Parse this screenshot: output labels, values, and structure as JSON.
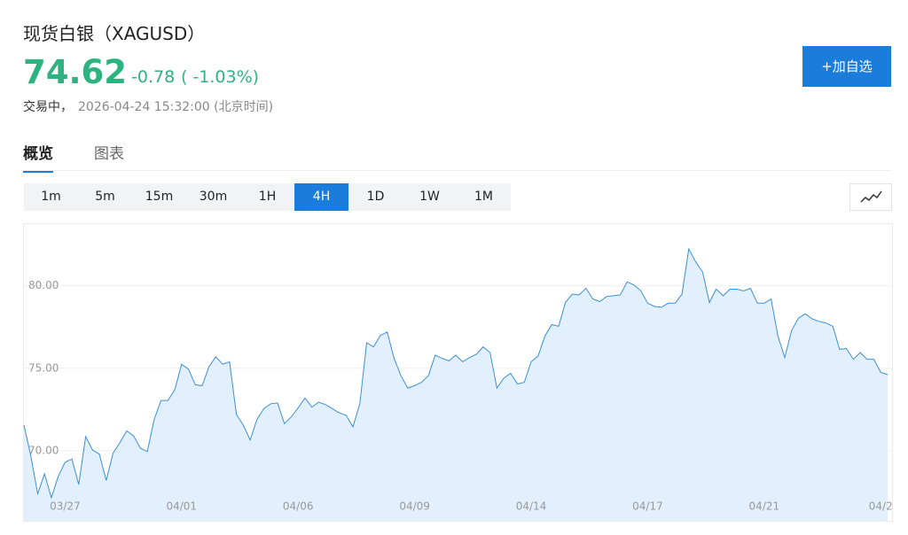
{
  "header": {
    "title": "现货白银（XAGUSD）",
    "price": 74.62,
    "change": -0.78,
    "change_pct": "( -1.03%)",
    "status": "交易中，",
    "time": "2026-04-24 15:32:00 (北京时间)",
    "button": "+加自选"
  },
  "tabs": [
    "概览",
    "图表"
  ],
  "active_tab": "概览",
  "periods": [
    "1m",
    "5m",
    "15m",
    "30m",
    "1H",
    "4H",
    "1D",
    "1W",
    "1M"
  ],
  "active_period": "4H",
  "chart_data": {
    "type": "area",
    "line_color": "#3d8fd6",
    "fill_color": "#e2effc",
    "grid": true,
    "xlim": [
      0,
      126
    ],
    "xticks": [
      {
        "value": 6,
        "label": "03/27"
      },
      {
        "value": 23,
        "label": "04/01"
      },
      {
        "value": 40,
        "label": "04/06"
      },
      {
        "value": 57,
        "label": "04/09"
      },
      {
        "value": 74,
        "label": "04/14"
      },
      {
        "value": 91,
        "label": "04/17"
      },
      {
        "value": 108,
        "label": "04/21"
      },
      {
        "value": 125,
        "label": "04/2"
      }
    ],
    "ylim": [
      65.75,
      83.8
    ],
    "yticks": [
      {
        "value": 70,
        "label": "70.00"
      },
      {
        "value": 75,
        "label": "75.00"
      },
      {
        "value": 80,
        "label": "80.00"
      }
    ],
    "values": [
      71.56,
      69.7,
      67.4,
      68.6,
      67.15,
      68.45,
      69.3,
      69.5,
      67.95,
      70.86,
      70.05,
      69.8,
      68.2,
      69.85,
      70.5,
      71.2,
      70.9,
      70.15,
      69.95,
      71.9,
      73.05,
      73.05,
      73.7,
      75.25,
      74.95,
      74.0,
      73.95,
      75.1,
      75.7,
      75.25,
      75.4,
      72.2,
      71.55,
      70.65,
      71.9,
      72.55,
      72.85,
      72.9,
      71.65,
      72.05,
      72.6,
      73.2,
      72.65,
      72.95,
      72.8,
      72.55,
      72.3,
      72.15,
      71.45,
      72.85,
      76.55,
      76.3,
      77.0,
      77.2,
      75.6,
      74.55,
      73.8,
      73.95,
      74.15,
      74.55,
      75.8,
      75.6,
      75.45,
      75.8,
      75.4,
      75.65,
      75.85,
      76.3,
      75.95,
      73.8,
      74.4,
      74.7,
      74.05,
      74.15,
      75.4,
      75.75,
      76.95,
      77.65,
      77.55,
      79.0,
      79.5,
      79.45,
      79.85,
      79.2,
      79.05,
      79.35,
      79.4,
      79.45,
      80.25,
      80.05,
      79.7,
      78.95,
      78.75,
      78.7,
      78.95,
      78.95,
      79.5,
      82.25,
      81.45,
      80.85,
      79.0,
      79.8,
      79.4,
      79.8,
      79.8,
      79.7,
      79.85,
      78.95,
      78.95,
      79.2,
      76.95,
      75.65,
      77.3,
      78.05,
      78.3,
      78.0,
      77.85,
      77.75,
      77.55,
      76.15,
      76.2,
      75.55,
      75.95,
      75.55,
      75.55,
      74.75,
      74.62
    ]
  }
}
